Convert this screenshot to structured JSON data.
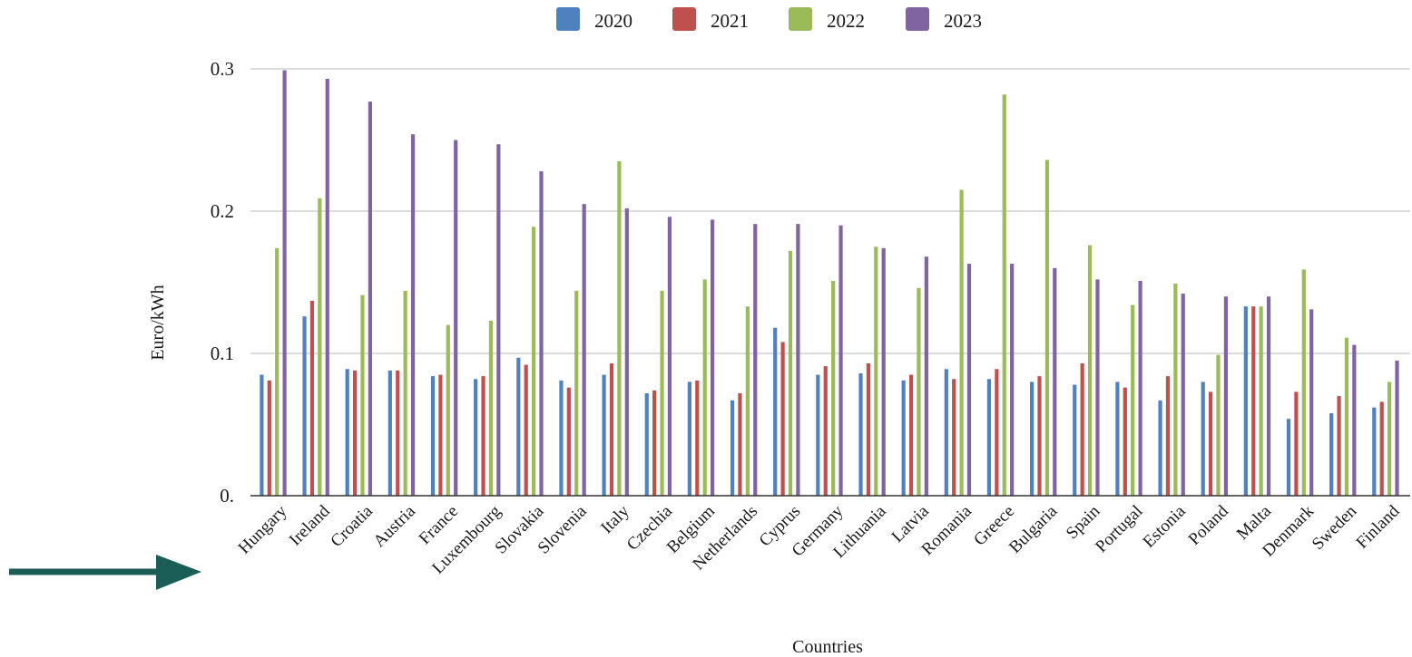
{
  "chart_data": {
    "type": "bar",
    "title": "",
    "xlabel": "Countries",
    "ylabel": "Euro/kWh",
    "ylim": [
      0,
      0.3
    ],
    "yticks": [
      {
        "value": 0,
        "label": "0."
      },
      {
        "value": 0.1,
        "label": "0.1"
      },
      {
        "value": 0.2,
        "label": "0.2"
      },
      {
        "value": 0.3,
        "label": "0.3"
      }
    ],
    "grid": true,
    "legend_position": "top",
    "categories": [
      "Hungary",
      "Ireland",
      "Croatia",
      "Austria",
      "France",
      "Luxembourg",
      "Slovakia",
      "Slovenia",
      "Italy",
      "Czechia",
      "Belgium",
      "Netherlands",
      "Cyprus",
      "Germany",
      "Lithuania",
      "Latvia",
      "Romania",
      "Greece",
      "Bulgaria",
      "Spain",
      "Portugal",
      "Estonia",
      "Poland",
      "Malta",
      "Denmark",
      "Sweden",
      "Finland"
    ],
    "series": [
      {
        "name": "2020",
        "color": "#4f81c0",
        "values": [
          0.085,
          0.126,
          0.089,
          0.088,
          0.084,
          0.082,
          0.097,
          0.081,
          0.085,
          0.072,
          0.08,
          0.067,
          0.118,
          0.085,
          0.086,
          0.081,
          0.089,
          0.082,
          0.08,
          0.078,
          0.08,
          0.067,
          0.08,
          0.133,
          0.054,
          0.058,
          0.062
        ]
      },
      {
        "name": "2021",
        "color": "#c0504d",
        "values": [
          0.081,
          0.137,
          0.088,
          0.088,
          0.085,
          0.084,
          0.092,
          0.076,
          0.093,
          0.074,
          0.081,
          0.072,
          0.108,
          0.091,
          0.093,
          0.085,
          0.082,
          0.089,
          0.084,
          0.093,
          0.076,
          0.084,
          0.073,
          0.133,
          0.073,
          0.07,
          0.066
        ]
      },
      {
        "name": "2022",
        "color": "#9bbb59",
        "values": [
          0.174,
          0.209,
          0.141,
          0.144,
          0.12,
          0.123,
          0.189,
          0.144,
          0.235,
          0.144,
          0.152,
          0.133,
          0.172,
          0.151,
          0.175,
          0.146,
          0.215,
          0.282,
          0.236,
          0.176,
          0.134,
          0.149,
          0.099,
          0.133,
          0.159,
          0.111,
          0.08
        ]
      },
      {
        "name": "2023",
        "color": "#8064a2",
        "values": [
          0.299,
          0.293,
          0.277,
          0.254,
          0.25,
          0.247,
          0.228,
          0.205,
          0.202,
          0.196,
          0.194,
          0.191,
          0.191,
          0.19,
          0.174,
          0.168,
          0.163,
          0.163,
          0.16,
          0.152,
          0.151,
          0.142,
          0.14,
          0.14,
          0.131,
          0.106,
          0.095
        ]
      }
    ]
  },
  "annotation": {
    "type": "arrow",
    "color": "#1b5e57",
    "target": "category-labels"
  }
}
